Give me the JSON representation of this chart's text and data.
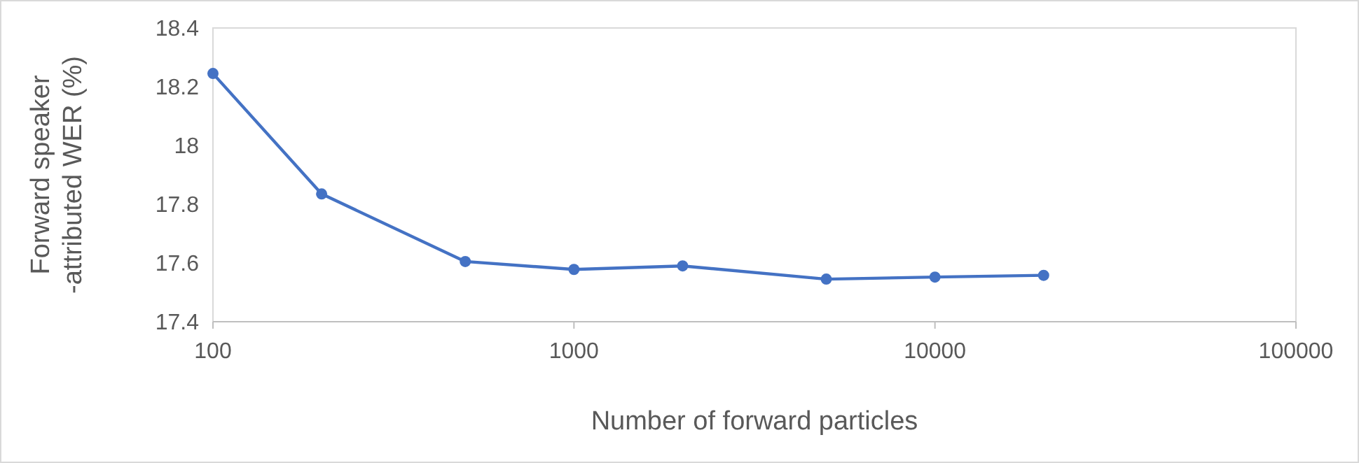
{
  "chart_data": {
    "type": "line",
    "xlabel": "Number of forward particles",
    "ylabel": "Forward speaker\n-attributed WER (%)",
    "x": [
      100,
      200,
      500,
      1000,
      2000,
      5000,
      10000,
      20000
    ],
    "series": [
      {
        "color": "#4472c4",
        "values": [
          18.245,
          17.835,
          17.605,
          17.578,
          17.59,
          17.545,
          17.552,
          17.558
        ]
      }
    ],
    "log": "x",
    "xlim": [
      100,
      100000
    ],
    "xticks": [
      100,
      1000,
      10000,
      100000
    ],
    "ylim": [
      17.4,
      18.4
    ],
    "yticks": [
      17.4,
      17.6,
      17.8,
      18,
      18.2,
      18.4
    ],
    "grid": false,
    "marker": "circle",
    "line_style": "solid"
  }
}
